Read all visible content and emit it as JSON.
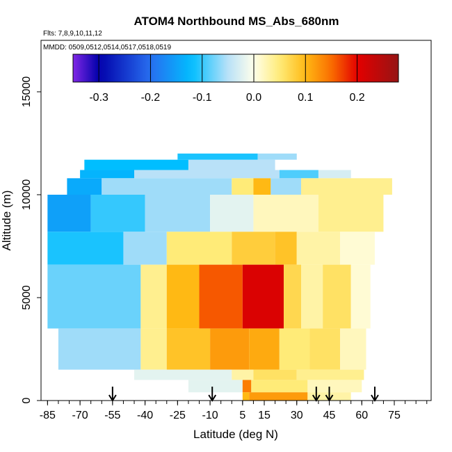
{
  "chart_data": {
    "type": "heatmap",
    "title": "ATOM4 Northbound MS_Abs_680nm",
    "flights_label": "Flts: 7,8,9,10,11,12",
    "mmdd_label": "MMDD: 0509,0512,0514,0517,0518,0519",
    "xlabel": "Latitude (deg N)",
    "ylabel": "Altitude (m)",
    "xlim": [
      -88,
      92
    ],
    "ylim": [
      0,
      17500
    ],
    "x_ticks": [
      "-85",
      "-70",
      "-55",
      "-40",
      "-25",
      "-10",
      "5",
      "15",
      "30",
      "45",
      "60",
      "75"
    ],
    "y_ticks": [
      "0",
      "5000",
      "10000",
      "15000"
    ],
    "colorbar": {
      "range": [
        -0.35,
        0.28
      ],
      "ticks": [
        "-0.3",
        "-0.2",
        "-0.1",
        "0.0",
        "0.1",
        "0.2"
      ]
    },
    "arrows_lat": [
      -55,
      -9,
      39,
      45,
      66
    ],
    "cells": [
      {
        "x0": -68,
        "x1": -20,
        "y0": 11200,
        "y1": 11700,
        "v": -0.12
      },
      {
        "x0": -20,
        "x1": 20,
        "y0": 11200,
        "y1": 11700,
        "v": -0.05
      },
      {
        "x0": -25,
        "x1": 12,
        "y0": 11700,
        "y1": 12000,
        "v": -0.11
      },
      {
        "x0": 12,
        "x1": 30,
        "y0": 11700,
        "y1": 12000,
        "v": -0.06
      },
      {
        "x0": -70,
        "x1": -45,
        "y0": 10800,
        "y1": 11200,
        "v": -0.13
      },
      {
        "x0": -45,
        "x1": 22,
        "y0": 10800,
        "y1": 11200,
        "v": -0.05
      },
      {
        "x0": 22,
        "x1": 40,
        "y0": 10800,
        "y1": 11200,
        "v": -0.09
      },
      {
        "x0": 40,
        "x1": 55,
        "y0": 10800,
        "y1": 11200,
        "v": -0.03
      },
      {
        "x0": -76,
        "x1": -60,
        "y0": 10000,
        "y1": 10800,
        "v": -0.14
      },
      {
        "x0": -60,
        "x1": 0,
        "y0": 10000,
        "y1": 10800,
        "v": -0.06
      },
      {
        "x0": 0,
        "x1": 10,
        "y0": 10000,
        "y1": 10800,
        "v": 0.05
      },
      {
        "x0": 10,
        "x1": 18,
        "y0": 10000,
        "y1": 10800,
        "v": 0.1
      },
      {
        "x0": 18,
        "x1": 32,
        "y0": 10000,
        "y1": 10800,
        "v": -0.06
      },
      {
        "x0": 32,
        "x1": 74,
        "y0": 10000,
        "y1": 10800,
        "v": 0.04
      },
      {
        "x0": -85,
        "x1": -65,
        "y0": 8200,
        "y1": 10000,
        "v": -0.15
      },
      {
        "x0": -65,
        "x1": -40,
        "y0": 8200,
        "y1": 10000,
        "v": -0.1
      },
      {
        "x0": -40,
        "x1": -10,
        "y0": 8200,
        "y1": 10000,
        "v": -0.06
      },
      {
        "x0": -10,
        "x1": 10,
        "y0": 8200,
        "y1": 10000,
        "v": -0.02
      },
      {
        "x0": 10,
        "x1": 40,
        "y0": 8200,
        "y1": 10000,
        "v": 0.02
      },
      {
        "x0": 40,
        "x1": 70,
        "y0": 8200,
        "y1": 10000,
        "v": 0.04
      },
      {
        "x0": -85,
        "x1": -50,
        "y0": 6600,
        "y1": 8200,
        "v": -0.11
      },
      {
        "x0": -50,
        "x1": -30,
        "y0": 6600,
        "y1": 8200,
        "v": -0.06
      },
      {
        "x0": -30,
        "x1": 0,
        "y0": 6600,
        "y1": 8200,
        "v": 0.05
      },
      {
        "x0": 0,
        "x1": 20,
        "y0": 6600,
        "y1": 8200,
        "v": 0.08
      },
      {
        "x0": 20,
        "x1": 30,
        "y0": 6600,
        "y1": 8200,
        "v": 0.09
      },
      {
        "x0": 30,
        "x1": 50,
        "y0": 6600,
        "y1": 8200,
        "v": 0.03
      },
      {
        "x0": 50,
        "x1": 66,
        "y0": 6600,
        "y1": 8200,
        "v": 0.01
      },
      {
        "x0": -85,
        "x1": -42,
        "y0": 3500,
        "y1": 6600,
        "v": -0.08
      },
      {
        "x0": -42,
        "x1": -30,
        "y0": 3500,
        "y1": 6600,
        "v": 0.04
      },
      {
        "x0": -30,
        "x1": -15,
        "y0": 3500,
        "y1": 6600,
        "v": 0.1
      },
      {
        "x0": -15,
        "x1": 5,
        "y0": 3500,
        "y1": 6600,
        "v": 0.16
      },
      {
        "x0": 5,
        "x1": 24,
        "y0": 3500,
        "y1": 6600,
        "v": 0.21
      },
      {
        "x0": 24,
        "x1": 32,
        "y0": 3500,
        "y1": 6600,
        "v": 0.07
      },
      {
        "x0": 32,
        "x1": 42,
        "y0": 3500,
        "y1": 6600,
        "v": 0.03
      },
      {
        "x0": 42,
        "x1": 55,
        "y0": 3500,
        "y1": 6600,
        "v": 0.06
      },
      {
        "x0": 55,
        "x1": 64,
        "y0": 3500,
        "y1": 6600,
        "v": 0.01
      },
      {
        "x0": -80,
        "x1": -42,
        "y0": 1500,
        "y1": 3500,
        "v": -0.06
      },
      {
        "x0": -42,
        "x1": -30,
        "y0": 1500,
        "y1": 3500,
        "v": 0.04
      },
      {
        "x0": -30,
        "x1": -10,
        "y0": 1500,
        "y1": 3500,
        "v": 0.09
      },
      {
        "x0": -10,
        "x1": 8,
        "y0": 1500,
        "y1": 3500,
        "v": 0.12
      },
      {
        "x0": 8,
        "x1": 22,
        "y0": 1500,
        "y1": 3500,
        "v": 0.11
      },
      {
        "x0": 22,
        "x1": 36,
        "y0": 1500,
        "y1": 3500,
        "v": 0.05
      },
      {
        "x0": 36,
        "x1": 50,
        "y0": 1500,
        "y1": 3500,
        "v": 0.06
      },
      {
        "x0": 50,
        "x1": 62,
        "y0": 1500,
        "y1": 3500,
        "v": 0.02
      },
      {
        "x0": -45,
        "x1": 0,
        "y0": 1000,
        "y1": 1500,
        "v": -0.02
      },
      {
        "x0": 0,
        "x1": 10,
        "y0": 1000,
        "y1": 1500,
        "v": 0.03
      },
      {
        "x0": 10,
        "x1": 30,
        "y0": 1000,
        "y1": 1500,
        "v": 0.06
      },
      {
        "x0": 30,
        "x1": 61,
        "y0": 1000,
        "y1": 1500,
        "v": 0.04
      },
      {
        "x0": -20,
        "x1": 5,
        "y0": 400,
        "y1": 1000,
        "v": -0.02
      },
      {
        "x0": 5,
        "x1": 9,
        "y0": 400,
        "y1": 1000,
        "v": 0.14
      },
      {
        "x0": 9,
        "x1": 35,
        "y0": 400,
        "y1": 1000,
        "v": 0.05
      },
      {
        "x0": 35,
        "x1": 60,
        "y0": 400,
        "y1": 1000,
        "v": 0.02
      },
      {
        "x0": 5,
        "x1": 8,
        "y0": 0,
        "y1": 400,
        "v": 0.1
      },
      {
        "x0": 8,
        "x1": 35,
        "y0": 0,
        "y1": 400,
        "v": 0.12
      },
      {
        "x0": 35,
        "x1": 55,
        "y0": 0,
        "y1": 400,
        "v": 0.03
      }
    ]
  }
}
